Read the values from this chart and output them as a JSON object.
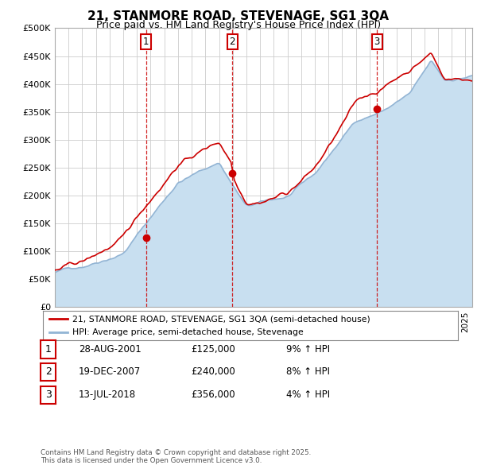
{
  "title": "21, STANMORE ROAD, STEVENAGE, SG1 3QA",
  "subtitle": "Price paid vs. HM Land Registry's House Price Index (HPI)",
  "ylabel_ticks": [
    "£0",
    "£50K",
    "£100K",
    "£150K",
    "£200K",
    "£250K",
    "£300K",
    "£350K",
    "£400K",
    "£450K",
    "£500K"
  ],
  "ytick_values": [
    0,
    50000,
    100000,
    150000,
    200000,
    250000,
    300000,
    350000,
    400000,
    450000,
    500000
  ],
  "xlim": [
    1995.0,
    2025.5
  ],
  "ylim": [
    0,
    500000
  ],
  "hpi_color": "#92b4d4",
  "hpi_fill_color": "#c8dff0",
  "price_color": "#cc0000",
  "sale_marker_color": "#cc0000",
  "sale_points": [
    {
      "date_num": 2001.66,
      "price": 125000,
      "label": "1"
    },
    {
      "date_num": 2007.97,
      "price": 240000,
      "label": "2"
    },
    {
      "date_num": 2018.54,
      "price": 356000,
      "label": "3"
    }
  ],
  "legend_line1": "21, STANMORE ROAD, STEVENAGE, SG1 3QA (semi-detached house)",
  "legend_line2": "HPI: Average price, semi-detached house, Stevenage",
  "table_rows": [
    {
      "num": "1",
      "date": "28-AUG-2001",
      "price": "£125,000",
      "hpi": "9% ↑ HPI"
    },
    {
      "num": "2",
      "date": "19-DEC-2007",
      "price": "£240,000",
      "hpi": "8% ↑ HPI"
    },
    {
      "num": "3",
      "date": "13-JUL-2018",
      "price": "£356,000",
      "hpi": "4% ↑ HPI"
    }
  ],
  "footer": "Contains HM Land Registry data © Crown copyright and database right 2025.\nThis data is licensed under the Open Government Licence v3.0.",
  "background_color": "#ffffff",
  "plot_bg_color": "#ffffff",
  "grid_color": "#cccccc"
}
